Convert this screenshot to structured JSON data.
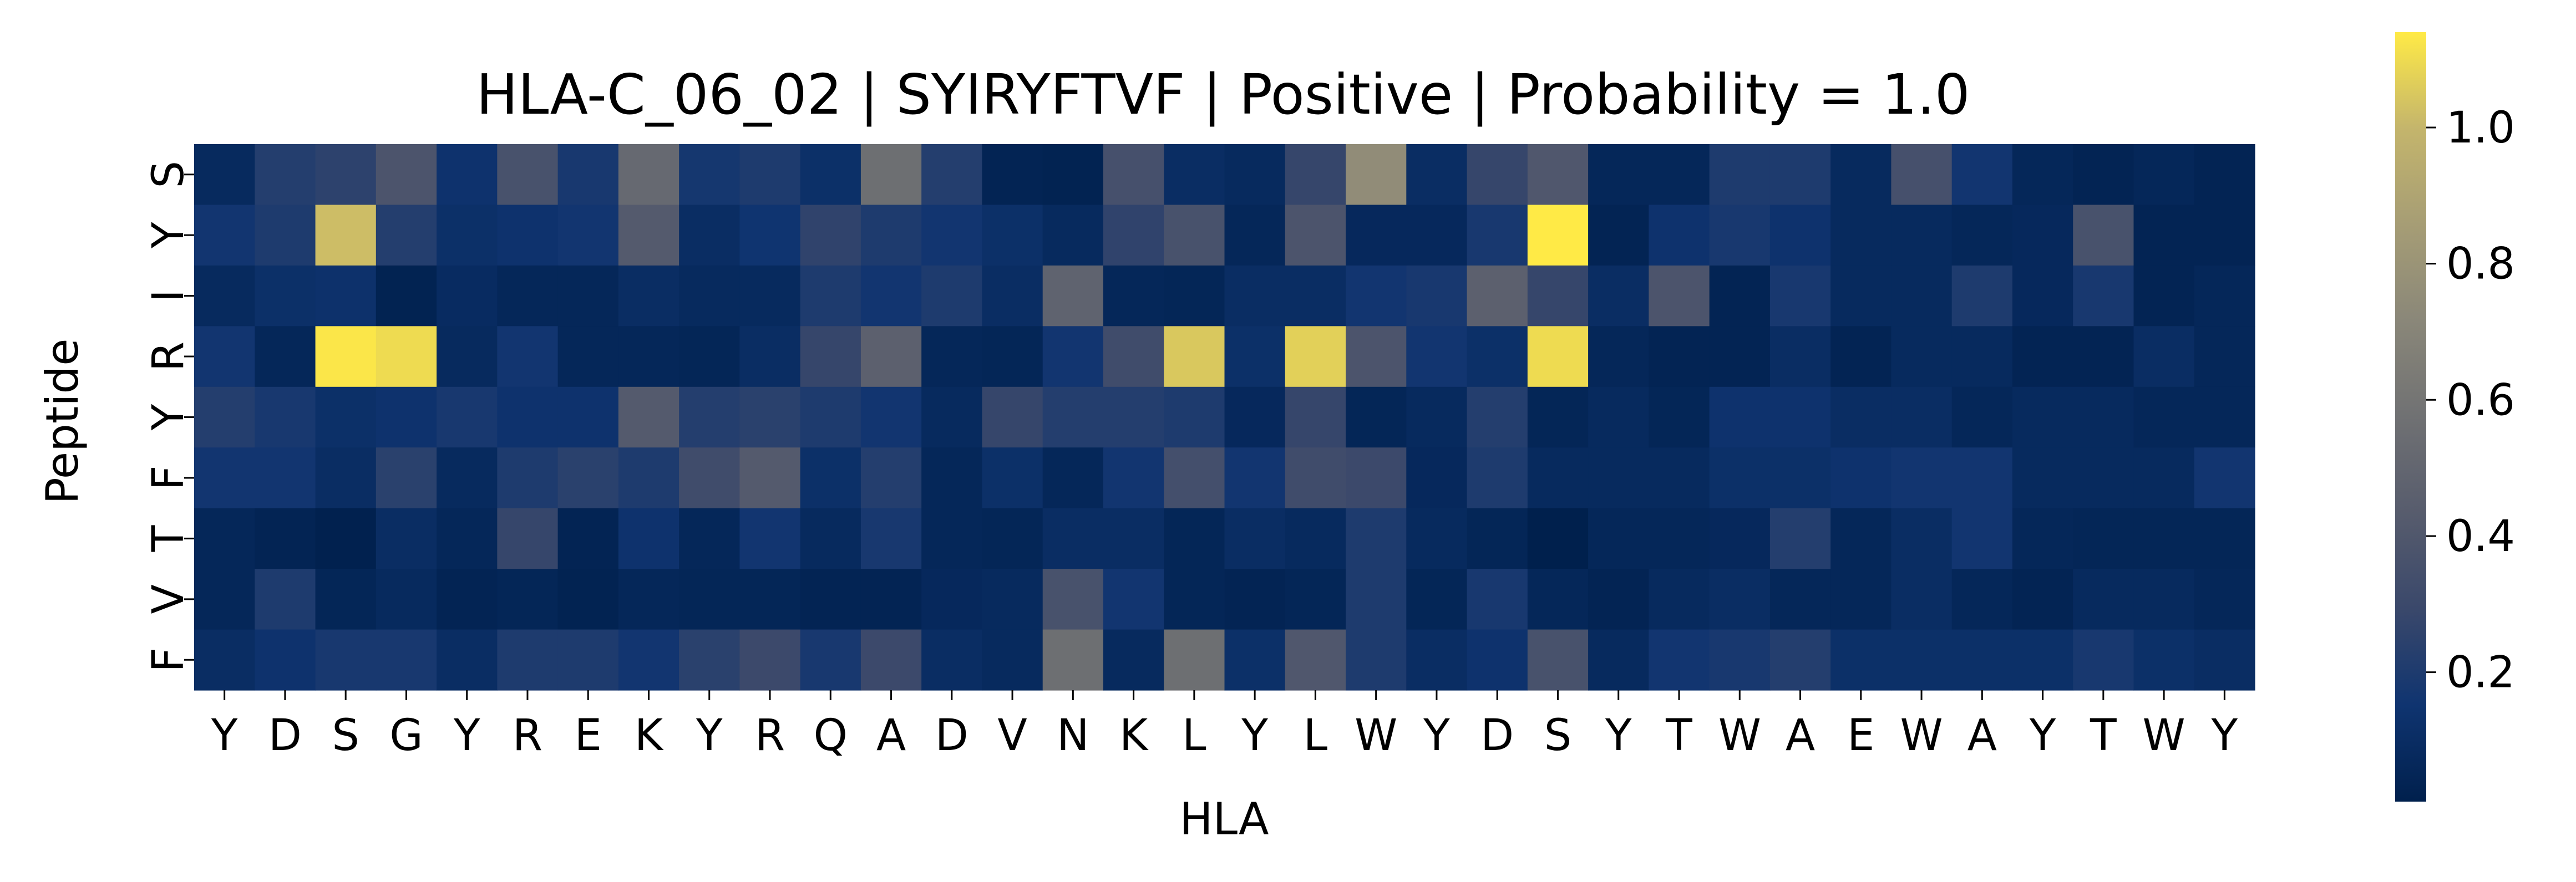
{
  "chart_data": {
    "type": "heatmap",
    "title": "HLA-C_06_02 | SYIRYFTVF | Positive | Probability = 1.0",
    "xlabel": "HLA",
    "ylabel": "Peptide",
    "x_categories": [
      "Y",
      "D",
      "S",
      "G",
      "Y",
      "R",
      "E",
      "K",
      "Y",
      "R",
      "Q",
      "A",
      "D",
      "V",
      "N",
      "K",
      "L",
      "Y",
      "L",
      "W",
      "Y",
      "D",
      "S",
      "Y",
      "T",
      "W",
      "A",
      "E",
      "W",
      "A",
      "Y",
      "T",
      "W",
      "Y"
    ],
    "y_categories": [
      "S",
      "Y",
      "I",
      "R",
      "Y",
      "F",
      "T",
      "V",
      "F"
    ],
    "colormap": "cividis",
    "color_range": [
      0.01,
      1.14
    ],
    "colorbar_ticks": [
      {
        "value": 0.2,
        "label": "0.2"
      },
      {
        "value": 0.4,
        "label": "0.4"
      },
      {
        "value": 0.6,
        "label": "0.6"
      },
      {
        "value": 0.8,
        "label": "0.8"
      },
      {
        "value": 1.0,
        "label": "1.0"
      }
    ],
    "values": [
      [
        0.08,
        0.22,
        0.25,
        0.38,
        0.14,
        0.36,
        0.18,
        0.52,
        0.17,
        0.2,
        0.12,
        0.56,
        0.22,
        0.04,
        0.03,
        0.35,
        0.1,
        0.08,
        0.28,
        0.75,
        0.1,
        0.28,
        0.4,
        0.06,
        0.06,
        0.2,
        0.2,
        0.08,
        0.35,
        0.16,
        0.06,
        0.04,
        0.06,
        0.04
      ],
      [
        0.16,
        0.2,
        1.02,
        0.22,
        0.12,
        0.14,
        0.16,
        0.42,
        0.1,
        0.15,
        0.26,
        0.2,
        0.16,
        0.12,
        0.08,
        0.26,
        0.36,
        0.06,
        0.38,
        0.07,
        0.07,
        0.18,
        1.14,
        0.04,
        0.14,
        0.18,
        0.14,
        0.08,
        0.08,
        0.06,
        0.07,
        0.36,
        0.04,
        0.04
      ],
      [
        0.08,
        0.12,
        0.13,
        0.03,
        0.09,
        0.06,
        0.06,
        0.1,
        0.08,
        0.08,
        0.2,
        0.16,
        0.2,
        0.1,
        0.48,
        0.06,
        0.05,
        0.1,
        0.1,
        0.16,
        0.18,
        0.46,
        0.28,
        0.1,
        0.38,
        0.04,
        0.18,
        0.08,
        0.08,
        0.2,
        0.07,
        0.18,
        0.04,
        0.06
      ],
      [
        0.16,
        0.06,
        1.13,
        1.1,
        0.08,
        0.16,
        0.06,
        0.06,
        0.05,
        0.1,
        0.28,
        0.46,
        0.06,
        0.05,
        0.16,
        0.32,
        1.05,
        0.12,
        1.07,
        0.38,
        0.16,
        0.12,
        1.1,
        0.06,
        0.04,
        0.04,
        0.1,
        0.04,
        0.08,
        0.08,
        0.04,
        0.04,
        0.1,
        0.06
      ],
      [
        0.22,
        0.18,
        0.12,
        0.14,
        0.18,
        0.14,
        0.14,
        0.42,
        0.22,
        0.24,
        0.2,
        0.16,
        0.08,
        0.28,
        0.22,
        0.22,
        0.2,
        0.07,
        0.28,
        0.05,
        0.08,
        0.22,
        0.05,
        0.08,
        0.05,
        0.14,
        0.14,
        0.1,
        0.1,
        0.06,
        0.08,
        0.08,
        0.06,
        0.06
      ],
      [
        0.16,
        0.16,
        0.1,
        0.24,
        0.08,
        0.2,
        0.24,
        0.2,
        0.32,
        0.42,
        0.12,
        0.22,
        0.06,
        0.12,
        0.06,
        0.16,
        0.34,
        0.16,
        0.32,
        0.3,
        0.07,
        0.2,
        0.08,
        0.08,
        0.08,
        0.12,
        0.12,
        0.14,
        0.16,
        0.16,
        0.08,
        0.08,
        0.08,
        0.16
      ],
      [
        0.06,
        0.04,
        0.02,
        0.1,
        0.06,
        0.28,
        0.04,
        0.14,
        0.06,
        0.16,
        0.08,
        0.18,
        0.06,
        0.05,
        0.1,
        0.1,
        0.05,
        0.1,
        0.08,
        0.2,
        0.08,
        0.05,
        0.01,
        0.06,
        0.06,
        0.07,
        0.22,
        0.06,
        0.1,
        0.16,
        0.06,
        0.05,
        0.05,
        0.05
      ],
      [
        0.06,
        0.2,
        0.05,
        0.08,
        0.04,
        0.05,
        0.03,
        0.06,
        0.05,
        0.05,
        0.04,
        0.04,
        0.07,
        0.08,
        0.36,
        0.16,
        0.05,
        0.04,
        0.05,
        0.2,
        0.05,
        0.18,
        0.06,
        0.04,
        0.08,
        0.1,
        0.06,
        0.06,
        0.1,
        0.06,
        0.04,
        0.08,
        0.08,
        0.06
      ],
      [
        0.1,
        0.14,
        0.18,
        0.18,
        0.1,
        0.2,
        0.2,
        0.16,
        0.24,
        0.3,
        0.18,
        0.3,
        0.1,
        0.08,
        0.56,
        0.08,
        0.56,
        0.12,
        0.4,
        0.2,
        0.1,
        0.14,
        0.36,
        0.08,
        0.16,
        0.18,
        0.22,
        0.12,
        0.12,
        0.12,
        0.12,
        0.18,
        0.12,
        0.1
      ]
    ]
  }
}
